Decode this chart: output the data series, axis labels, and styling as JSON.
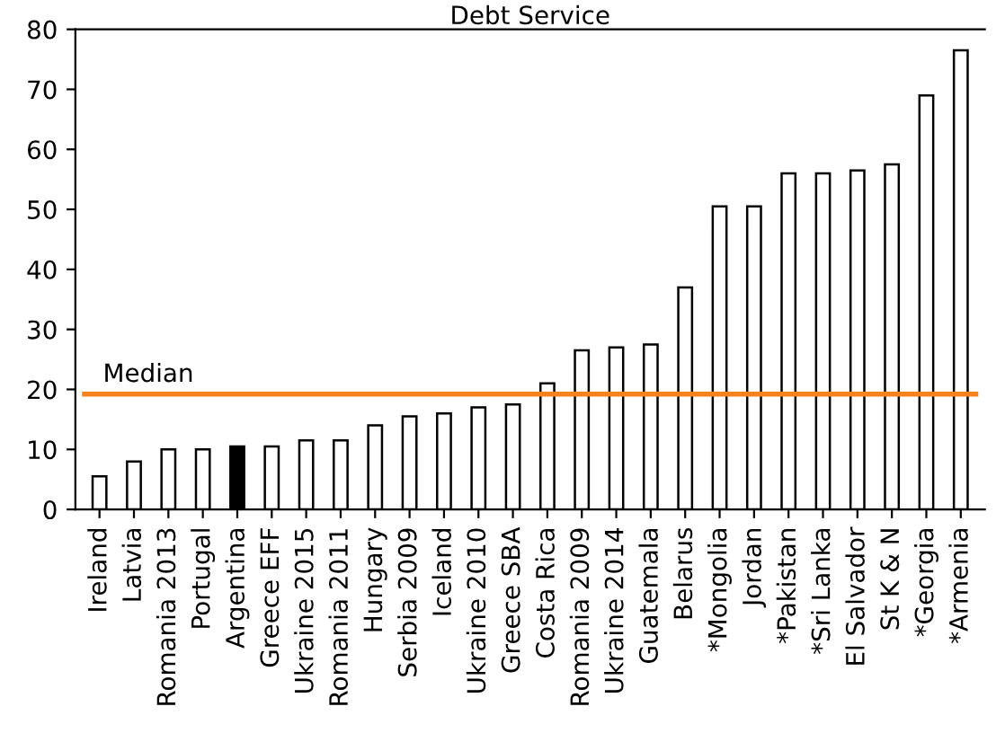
{
  "chart_data": {
    "type": "bar",
    "title": "Debt Service",
    "categories": [
      "Ireland",
      "Latvia",
      "Romania 2013",
      "Portugal",
      "Argentina",
      "Greece EFF",
      "Ukraine 2015",
      "Romania 2011",
      "Hungary",
      "Serbia 2009",
      "Iceland",
      "Ukraine 2010",
      "Greece SBA",
      "Costa Rica",
      "Romania 2009",
      "Ukraine 2014",
      "Guatemala",
      "Belarus",
      "*Mongolia",
      "Jordan",
      "*Pakistan",
      "*Sri Lanka",
      "El Salvador",
      "St K & N",
      "*Georgia",
      "*Armenia"
    ],
    "values": [
      5.5,
      8,
      10,
      10,
      10.5,
      10.5,
      11.5,
      11.5,
      14,
      15.5,
      16,
      17,
      17.5,
      21,
      26.5,
      27,
      27.5,
      37,
      50.5,
      50.5,
      56,
      56,
      56.5,
      57.5,
      69,
      76.5
    ],
    "colors": [
      "#ffffff",
      "#ffffff",
      "#ffffff",
      "#ffffff",
      "#000000",
      "#ffffff",
      "#ffffff",
      "#ffffff",
      "#ffffff",
      "#ffffff",
      "#ffffff",
      "#ffffff",
      "#ffffff",
      "#ffffff",
      "#ffffff",
      "#ffffff",
      "#ffffff",
      "#ffffff",
      "#ffffff",
      "#ffffff",
      "#ffffff",
      "#ffffff",
      "#ffffff",
      "#ffffff",
      "#ffffff",
      "#ffffff"
    ],
    "ylim": [
      0,
      80
    ],
    "yticks": [
      0,
      10,
      20,
      30,
      40,
      50,
      60,
      70,
      80
    ],
    "grid": false,
    "legend": false,
    "ref_lines": [
      {
        "axis": "y",
        "value": 19.2,
        "label": "Median",
        "color": "#f5821f"
      }
    ]
  }
}
